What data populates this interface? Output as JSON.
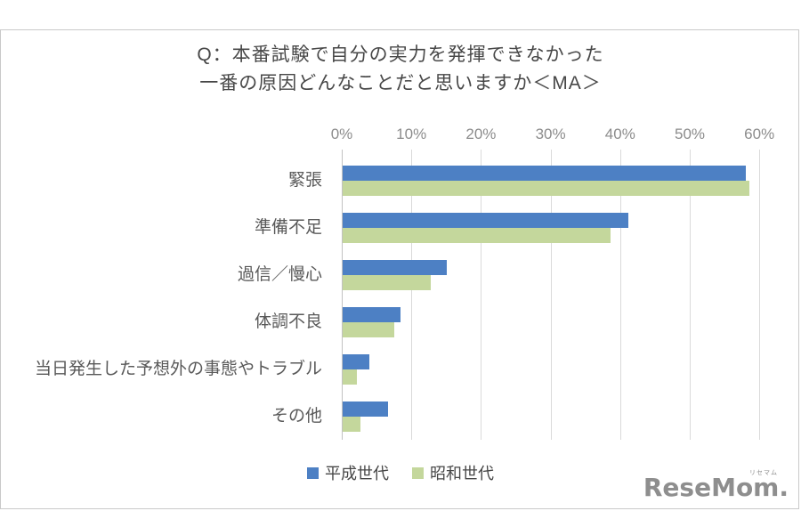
{
  "chart_data": {
    "type": "bar",
    "orientation": "horizontal",
    "title_lines": [
      "Q：本番試験で自分の実力を発揮できなかった",
      "一番の原因どんなことだと思いますか＜MA＞"
    ],
    "categories": [
      "緊張",
      "準備不足",
      "過信／慢心",
      "体調不良",
      "当日発生した予想外の事態やトラブル",
      "その他"
    ],
    "series": [
      {
        "name": "平成世代",
        "color": "#4d80c4",
        "values": [
          57.9,
          41.0,
          15.0,
          8.3,
          3.8,
          6.5
        ]
      },
      {
        "name": "昭和世代",
        "color": "#c4d79c",
        "values": [
          58.5,
          38.5,
          12.7,
          7.4,
          2.1,
          2.6
        ]
      }
    ],
    "value_unit": "%",
    "x_axis": {
      "position": "top",
      "min": 0,
      "max": 60,
      "tick_labels": [
        "0%",
        "10%",
        "20%",
        "30%",
        "40%",
        "50%",
        "60%"
      ],
      "grid": true
    },
    "legend_position": "bottom"
  },
  "logo": {
    "text": "ReseMom.",
    "ruby": "リセマム"
  }
}
